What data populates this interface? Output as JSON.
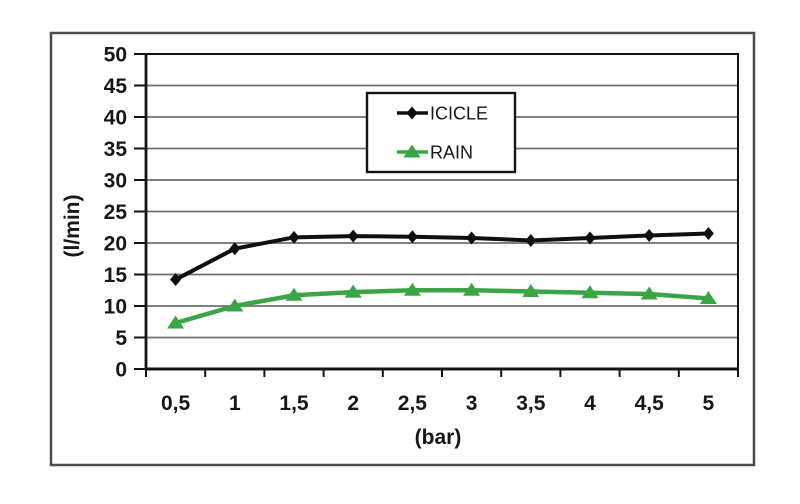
{
  "chart_data": {
    "type": "line",
    "title": "",
    "xlabel": "(bar)",
    "ylabel": "(l/min)",
    "x": [
      0.5,
      1,
      1.5,
      2,
      2.5,
      3,
      3.5,
      4,
      4.5,
      5
    ],
    "x_tick_labels": [
      "0,5",
      "1",
      "1,5",
      "2",
      "2,5",
      "3",
      "3,5",
      "4",
      "4,5",
      "5"
    ],
    "ylim": [
      0,
      50
    ],
    "y_ticks": [
      0,
      5,
      10,
      15,
      20,
      25,
      30,
      35,
      40,
      45,
      50
    ],
    "grid": true,
    "legend": {
      "position": "top-center",
      "entries": [
        "ICICLE",
        "RAIN"
      ]
    },
    "series": [
      {
        "name": "ICICLE",
        "color": "#0f0f0f",
        "marker": "diamond",
        "values": [
          14.2,
          19.1,
          20.9,
          21.1,
          21.0,
          20.8,
          20.4,
          20.8,
          21.2,
          21.5
        ]
      },
      {
        "name": "RAIN",
        "color": "#3aa545",
        "marker": "triangle",
        "values": [
          7.3,
          10.0,
          11.7,
          12.2,
          12.5,
          12.5,
          12.3,
          12.1,
          11.9,
          11.2
        ]
      }
    ]
  },
  "colors": {
    "frame_border": "#4b4b4b",
    "plot_border": "#141414",
    "gridline": "#6e6e6e",
    "background": "#ffffff",
    "text": "#17171a"
  }
}
